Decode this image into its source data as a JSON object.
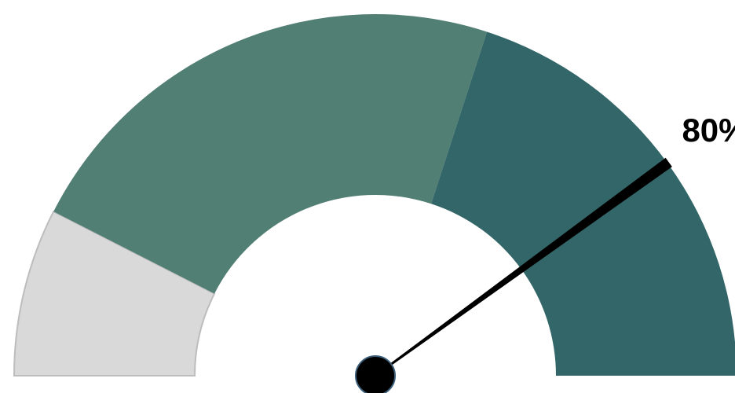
{
  "chart_data": {
    "type": "gauge",
    "value": 80,
    "value_label": "80%",
    "range": [
      0,
      100
    ],
    "bands": [
      {
        "from": 0,
        "to": 15,
        "color": "#d9d9d9"
      },
      {
        "from": 15,
        "to": 60,
        "color": "#527f74"
      },
      {
        "from": 60,
        "to": 100,
        "color": "#336668"
      }
    ],
    "needle_color": "#000000",
    "hub_color": "#000000",
    "hub_outline_color": "#3d5f7a"
  }
}
